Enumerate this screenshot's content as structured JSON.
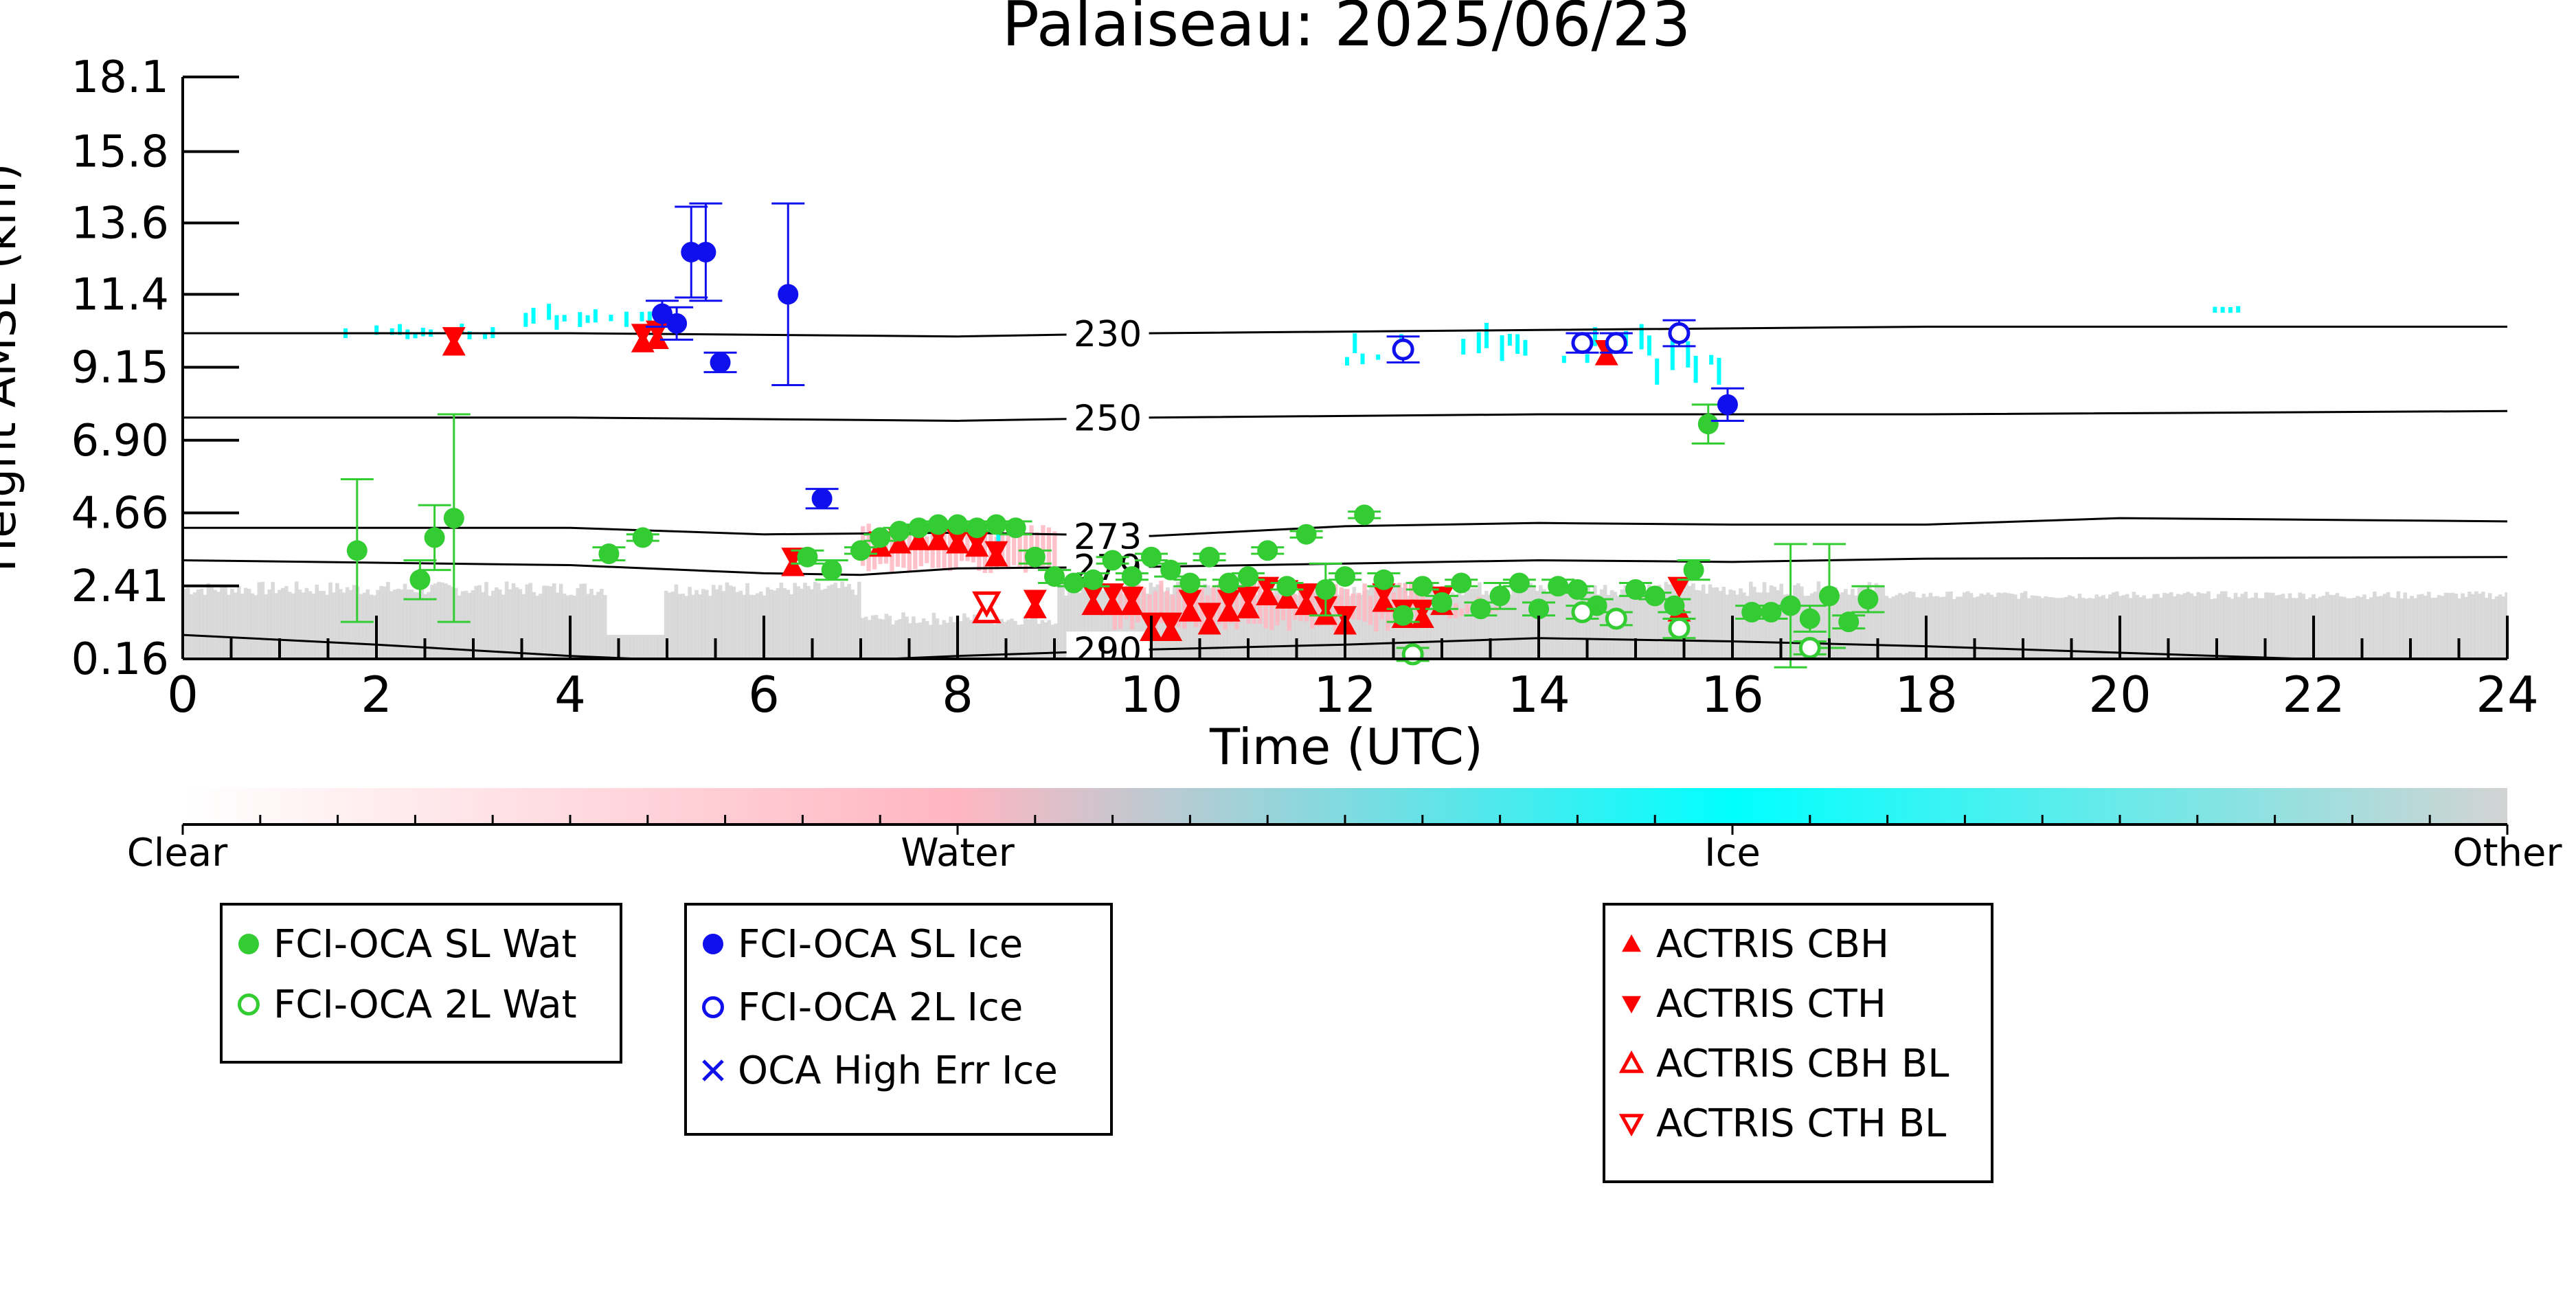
{
  "chart_data": {
    "type": "scatter",
    "title": "Palaiseau: 2025/06/23",
    "xlabel": "Time (UTC)",
    "ylabel": "Height AMSL (km)",
    "xlim": [
      0,
      24
    ],
    "ylim": [
      0.16,
      18.1
    ],
    "x_ticks": [
      "0",
      "2",
      "4",
      "6",
      "8",
      "10",
      "12",
      "14",
      "16",
      "18",
      "20",
      "22",
      "24"
    ],
    "y_ticks": [
      "0.16",
      "2.41",
      "4.66",
      "6.90",
      "9.15",
      "11.4",
      "13.6",
      "15.8",
      "18.1"
    ],
    "y_tick_values": [
      0.16,
      2.41,
      4.66,
      6.9,
      9.15,
      11.4,
      13.6,
      15.8,
      18.1
    ],
    "grid": false,
    "colorbar": {
      "labels": [
        "Clear",
        "Water",
        "Ice",
        "Other"
      ],
      "colors": {
        "clear": "#ffffff",
        "water": "#ffb6c1",
        "ice": "#00ffff",
        "other": "#d3d3d3"
      }
    },
    "isotherms": [
      {
        "label": "230",
        "x": [
          0,
          4,
          8,
          10,
          14,
          18,
          24
        ],
        "y": [
          10.2,
          10.2,
          10.1,
          10.2,
          10.3,
          10.4,
          10.4
        ]
      },
      {
        "label": "250",
        "x": [
          0,
          4,
          8,
          10,
          14,
          18,
          24
        ],
        "y": [
          7.6,
          7.6,
          7.5,
          7.6,
          7.7,
          7.7,
          7.8
        ]
      },
      {
        "label": "273",
        "x": [
          0,
          4,
          6,
          8,
          10,
          12,
          14,
          16,
          18,
          20,
          24
        ],
        "y": [
          4.2,
          4.2,
          4.0,
          4.05,
          3.95,
          4.25,
          4.35,
          4.3,
          4.3,
          4.5,
          4.4
        ]
      },
      {
        "label": "279",
        "x": [
          0,
          4,
          6,
          7,
          8,
          10,
          12,
          14,
          16,
          18,
          24
        ],
        "y": [
          3.2,
          3.05,
          2.8,
          2.75,
          2.95,
          3.0,
          3.1,
          3.2,
          3.15,
          3.25,
          3.3
        ]
      },
      {
        "label": "290",
        "x": [
          0,
          2,
          4,
          6,
          8,
          10,
          12,
          14,
          16,
          18,
          20,
          22,
          24
        ],
        "y": [
          0.9,
          0.6,
          0.25,
          0.0,
          0.25,
          0.45,
          0.6,
          0.8,
          0.7,
          0.55,
          0.35,
          0.15,
          0.05
        ]
      }
    ],
    "series": [
      {
        "name": "FCI-OCA SL Wat",
        "color": "#33cc33",
        "marker": "filled-circle",
        "x": [
          1.8,
          2.45,
          2.6,
          2.8,
          4.4,
          4.75,
          6.45,
          6.7,
          7.0,
          7.2,
          7.4,
          7.6,
          7.8,
          8.0,
          8.2,
          8.4,
          8.6,
          8.8,
          9.0,
          9.2,
          9.4,
          9.6,
          9.8,
          10.0,
          10.2,
          10.4,
          10.6,
          10.8,
          11.0,
          11.2,
          11.4,
          11.6,
          11.8,
          12.0,
          12.2,
          12.4,
          12.6,
          12.8,
          13.0,
          13.2,
          13.4,
          13.6,
          13.8,
          14.0,
          14.2,
          14.4,
          14.6,
          15.0,
          15.2,
          15.4,
          15.6,
          15.75,
          16.2,
          16.4,
          16.6,
          16.8,
          17.0,
          17.2,
          17.4
        ],
        "y": [
          3.5,
          2.6,
          3.9,
          4.5,
          3.4,
          3.9,
          3.3,
          2.9,
          3.5,
          3.9,
          4.1,
          4.2,
          4.3,
          4.3,
          4.2,
          4.3,
          4.2,
          3.3,
          2.7,
          2.5,
          2.6,
          3.2,
          2.7,
          3.3,
          2.9,
          2.5,
          3.3,
          2.5,
          2.7,
          3.5,
          2.4,
          4.0,
          2.3,
          2.7,
          4.6,
          2.6,
          1.5,
          2.4,
          1.9,
          2.5,
          1.7,
          2.1,
          2.5,
          1.7,
          2.4,
          2.3,
          1.8,
          2.3,
          2.1,
          1.8,
          2.9,
          7.4,
          1.6,
          1.6,
          1.8,
          1.4,
          2.1,
          1.3,
          2.0
        ],
        "err": [
          2.2,
          0.6,
          1.0,
          3.2,
          0.2,
          0.1,
          0.2,
          0.3,
          0.1,
          0.1,
          0.1,
          0.1,
          0.1,
          0.1,
          0.1,
          0.1,
          0.2,
          0.2,
          0.2,
          0.1,
          0.2,
          0.1,
          0.1,
          0.1,
          0.2,
          0.1,
          0.1,
          0.1,
          0.1,
          0.1,
          0.1,
          0.1,
          0.8,
          0.1,
          0.1,
          0.2,
          0.2,
          0.1,
          0.2,
          0.1,
          0.2,
          0.4,
          0.1,
          0.2,
          0.2,
          0.1,
          0.2,
          0.2,
          0.1,
          0.2,
          0.3,
          0.6,
          0.2,
          0.2,
          1.9,
          0.4,
          1.6,
          0.2,
          0.4
        ]
      },
      {
        "name": "FCI-OCA 2L Wat",
        "color": "#33cc33",
        "marker": "open-circle",
        "x": [
          12.7,
          14.45,
          14.8,
          15.45,
          16.8
        ],
        "y": [
          0.3,
          1.6,
          1.4,
          1.1,
          0.5
        ],
        "err": [
          0.2,
          0.2,
          0.2,
          0.3,
          0.2
        ]
      },
      {
        "name": "FCI-OCA SL Ice",
        "color": "#1010ee",
        "marker": "filled-circle",
        "x": [
          4.95,
          5.1,
          5.25,
          5.4,
          5.55,
          6.25,
          6.6,
          15.95
        ],
        "y": [
          10.8,
          10.5,
          12.7,
          12.7,
          9.3,
          11.4,
          5.1,
          8.0
        ],
        "err": [
          0.4,
          0.5,
          1.4,
          1.5,
          0.3,
          2.8,
          0.3,
          0.5
        ]
      },
      {
        "name": "FCI-OCA 2L Ice",
        "color": "#1010ee",
        "marker": "open-circle",
        "x": [
          12.6,
          14.45,
          14.8,
          15.45
        ],
        "y": [
          9.7,
          9.9,
          9.9,
          10.2
        ],
        "err": [
          0.4,
          0.3,
          0.3,
          0.4
        ]
      },
      {
        "name": "OCA High Err Ice",
        "color": "#1010ee",
        "marker": "cross",
        "x": [],
        "y": [],
        "err": []
      },
      {
        "name": "ACTRIS CBH",
        "color": "#ff0000",
        "marker": "triangle-up",
        "x": [
          2.8,
          4.75,
          4.9,
          6.3,
          7.2,
          7.4,
          7.6,
          7.8,
          8.0,
          8.2,
          8.4,
          8.8,
          9.4,
          9.6,
          9.8,
          10.0,
          10.2,
          10.4,
          10.6,
          10.8,
          11.0,
          11.2,
          11.4,
          11.6,
          11.8,
          12.0,
          12.4,
          12.6,
          12.8,
          13.0,
          14.7,
          15.45
        ],
        "y": [
          9.8,
          9.9,
          10.0,
          3.0,
          3.6,
          3.7,
          3.8,
          3.8,
          3.7,
          3.6,
          3.3,
          1.7,
          1.8,
          1.8,
          1.8,
          1.0,
          1.0,
          1.6,
          1.2,
          1.6,
          1.7,
          2.1,
          2.0,
          1.8,
          1.5,
          1.2,
          1.9,
          1.4,
          1.4,
          1.8,
          9.5,
          1.6
        ]
      },
      {
        "name": "ACTRIS CTH",
        "color": "#ff0000",
        "marker": "triangle-down",
        "x": [
          2.8,
          4.75,
          4.9,
          6.3,
          7.2,
          7.4,
          7.6,
          7.8,
          8.0,
          8.2,
          8.4,
          8.8,
          9.4,
          9.6,
          9.8,
          10.0,
          10.2,
          10.4,
          10.6,
          10.8,
          11.0,
          11.2,
          11.4,
          11.6,
          11.8,
          12.0,
          12.4,
          12.6,
          12.8,
          13.0,
          14.7,
          15.45
        ],
        "y": [
          10.1,
          10.2,
          10.3,
          3.3,
          3.8,
          3.9,
          4.0,
          4.0,
          3.9,
          3.8,
          3.5,
          2.0,
          2.2,
          2.2,
          2.1,
          1.3,
          1.3,
          2.0,
          1.6,
          2.0,
          2.1,
          2.4,
          2.3,
          2.2,
          1.8,
          1.5,
          2.2,
          1.7,
          1.7,
          2.1,
          9.7,
          2.4
        ]
      },
      {
        "name": "ACTRIS CBH BL",
        "color": "#ff0000",
        "marker": "open-triangle-up",
        "x": [
          8.3
        ],
        "y": [
          1.6
        ]
      },
      {
        "name": "ACTRIS CTH BL",
        "color": "#ff0000",
        "marker": "open-triangle-down",
        "x": [
          8.3
        ],
        "y": [
          1.9
        ]
      }
    ]
  }
}
